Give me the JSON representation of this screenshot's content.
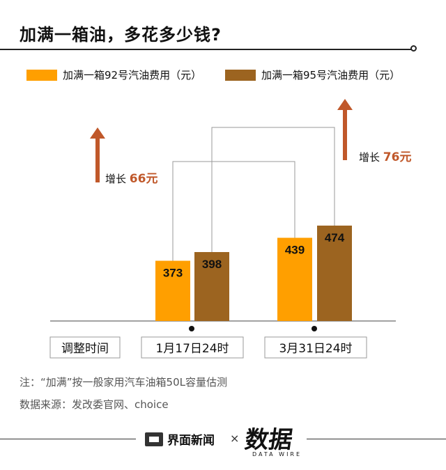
{
  "title": "加满一箱油，多花多少钱?",
  "legend": [
    {
      "label": "加满一箱92号汽油费用（元）",
      "color": "#FF9F00"
    },
    {
      "label": "加满一箱95号汽油费用（元）",
      "color": "#9C6420"
    }
  ],
  "chart_data": {
    "type": "bar",
    "categories": [
      "1月17日24时",
      "3月31日24时"
    ],
    "series": [
      {
        "name": "加满一箱92号汽油费用（元）",
        "values": [
          373,
          439
        ],
        "color": "#FF9F00"
      },
      {
        "name": "加满一箱95号汽油费用（元）",
        "values": [
          398,
          474
        ],
        "color": "#9C6420"
      }
    ],
    "xlabel": "调整时间",
    "annotations": [
      {
        "prefix": "增长",
        "value": "66元",
        "series": "加满一箱92号汽油费用（元）"
      },
      {
        "prefix": "增长",
        "value": "76元",
        "series": "加满一箱95号汽油费用（元）"
      }
    ],
    "arrow_color": "#C0582A"
  },
  "notes": {
    "note": "注：“加满”按一般家用汽车油箱50L容量估测",
    "source": "数据来源：发改委官网、choice"
  },
  "footer": {
    "brand": "界面新闻",
    "times": "×",
    "logo": "数据",
    "logo_sub": "DATA WIRE"
  }
}
